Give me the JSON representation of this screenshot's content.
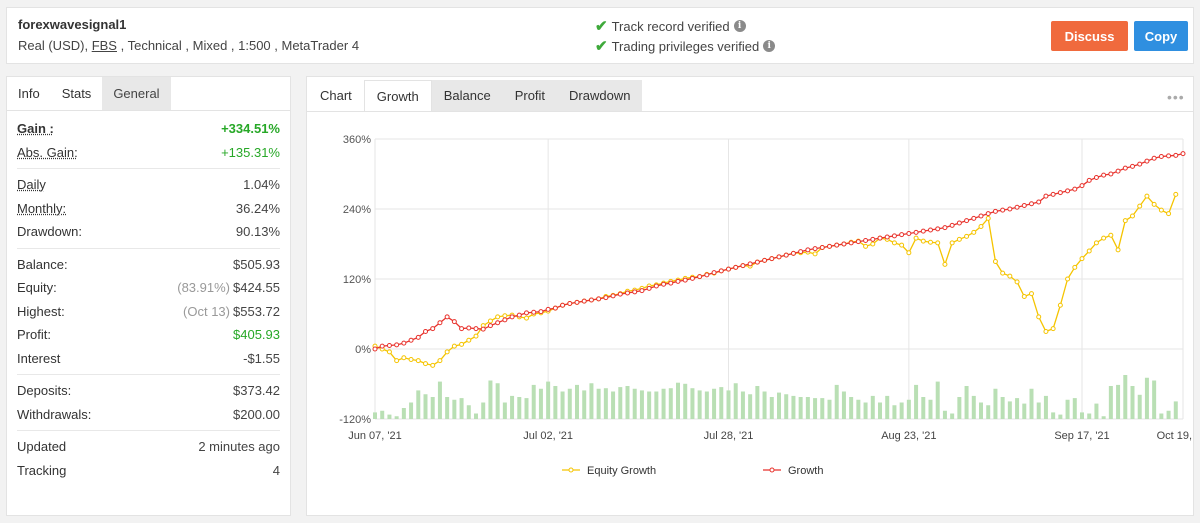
{
  "header": {
    "system_name": "forexwavesignal1",
    "subtitle_pre": "Real (USD), ",
    "broker": "FBS",
    "subtitle_post": " , Technical , Mixed , 1:500 , MetaTrader 4",
    "verified_track": "Track record verified",
    "verified_trading": "Trading privileges verified",
    "discuss_label": "Discuss",
    "copy_label": "Copy"
  },
  "info_tabs": [
    "Info",
    "Stats",
    "General"
  ],
  "stats": {
    "gain": {
      "label": "Gain :",
      "value": "+334.51%"
    },
    "abs_gain": {
      "label": "Abs. Gain:",
      "value": "+135.31%"
    },
    "daily": {
      "label": "Daily",
      "value": "1.04%"
    },
    "monthly": {
      "label": "Monthly:",
      "value": "36.24%"
    },
    "drawdown": {
      "label": "Drawdown:",
      "value": "90.13%"
    },
    "balance": {
      "label": "Balance:",
      "value": "$505.93"
    },
    "equity": {
      "label": "Equity:",
      "pre": "(83.91%)",
      "value": "$424.55"
    },
    "highest": {
      "label": "Highest:",
      "pre": "(Oct 13)",
      "value": "$553.72"
    },
    "profit": {
      "label": "Profit:",
      "value": "$405.93"
    },
    "interest": {
      "label": "Interest",
      "value": "-$1.55"
    },
    "deposits": {
      "label": "Deposits:",
      "value": "$373.42"
    },
    "withdrawals": {
      "label": "Withdrawals:",
      "value": "$200.00"
    },
    "updated": {
      "label": "Updated",
      "value": "2 minutes ago"
    },
    "tracking": {
      "label": "Tracking",
      "value": "4"
    }
  },
  "chart_tabs": [
    "Chart",
    "Growth",
    "Balance",
    "Profit",
    "Drawdown"
  ],
  "chart_data": {
    "type": "line",
    "title": "",
    "xlabel": "",
    "ylabel": "",
    "ylim": [
      -120,
      360
    ],
    "yticks": [
      "360%",
      "240%",
      "120%",
      "0%",
      "-120%"
    ],
    "xticks": [
      "Jun 07, '21",
      "Jul 02, '21",
      "Jul 28, '21",
      "Aug 23, '21",
      "Sep 17, '21",
      "Oct 19, '21"
    ],
    "legend_position": "bottom",
    "colors": {
      "equity": "#f5c400",
      "growth": "#e8322c",
      "bars": "#b9dfb4",
      "grid": "#e6e6e6"
    },
    "series": [
      {
        "name": "Growth",
        "values": [
          0,
          5,
          6,
          7,
          10,
          15,
          20,
          30,
          35,
          45,
          55,
          47,
          35,
          36,
          35,
          34,
          40,
          45,
          50,
          55,
          58,
          62,
          63,
          64,
          68,
          70,
          75,
          78,
          80,
          82,
          84,
          86,
          88,
          91,
          94,
          96,
          98,
          100,
          104,
          108,
          111,
          113,
          116,
          118,
          121,
          124,
          127,
          131,
          134,
          137,
          140,
          143,
          146,
          149,
          152,
          155,
          158,
          161,
          164,
          167,
          170,
          172,
          174,
          176,
          178,
          180,
          182,
          184,
          186,
          188,
          190,
          192,
          194,
          196,
          198,
          200,
          202,
          204,
          206,
          208,
          212,
          216,
          220,
          224,
          228,
          232,
          236,
          238,
          240,
          243,
          246,
          249,
          252,
          262,
          265,
          268,
          271,
          274,
          280,
          289,
          294,
          298,
          300,
          305,
          310,
          313,
          317,
          322,
          327,
          330,
          331,
          332,
          335
        ]
      },
      {
        "name": "Equity Growth",
        "values": [
          5,
          0,
          -5,
          -20,
          -15,
          -18,
          -20,
          -25,
          -28,
          -20,
          -5,
          5,
          8,
          15,
          22,
          40,
          48,
          55,
          57,
          58,
          55,
          53,
          60,
          62,
          65,
          70,
          75,
          78,
          80,
          82,
          84,
          86,
          90,
          92,
          95,
          99,
          101,
          104,
          108,
          110,
          113,
          116,
          118,
          121,
          123,
          124,
          128,
          130,
          134,
          137,
          140,
          143,
          142,
          149,
          152,
          155,
          158,
          161,
          164,
          165,
          166,
          163,
          174,
          176,
          178,
          180,
          183,
          185,
          176,
          180,
          190,
          188,
          182,
          178,
          165,
          190,
          185,
          183,
          182,
          145,
          182,
          188,
          193,
          200,
          210,
          224,
          150,
          130,
          125,
          115,
          90,
          95,
          55,
          30,
          35,
          75,
          120,
          140,
          155,
          168,
          182,
          190,
          195,
          170,
          220,
          228,
          245,
          262,
          248,
          238,
          232,
          265
        ]
      },
      {
        "name": "Bars",
        "values": [
          12,
          15,
          8,
          5,
          20,
          30,
          52,
          45,
          40,
          68,
          40,
          35,
          38,
          25,
          10,
          30,
          70,
          65,
          30,
          42,
          40,
          38,
          62,
          55,
          68,
          60,
          50,
          55,
          62,
          52,
          65,
          55,
          56,
          50,
          58,
          60,
          55,
          52,
          50,
          50,
          55,
          56,
          66,
          64,
          56,
          52,
          50,
          55,
          58,
          52,
          65,
          50,
          45,
          60,
          50,
          40,
          48,
          45,
          42,
          40,
          40,
          38,
          38,
          35,
          62,
          50,
          40,
          35,
          30,
          42,
          30,
          42,
          25,
          30,
          35,
          62,
          40,
          35,
          68,
          15,
          10,
          40,
          60,
          42,
          30,
          25,
          55,
          40,
          32,
          38,
          28,
          55,
          30,
          42,
          12,
          8,
          35,
          38,
          12,
          10,
          28,
          5,
          60,
          62,
          80,
          60,
          44,
          75,
          70,
          10,
          15,
          32
        ]
      }
    ]
  },
  "legend": {
    "equity": "Equity Growth",
    "growth": "Growth"
  }
}
